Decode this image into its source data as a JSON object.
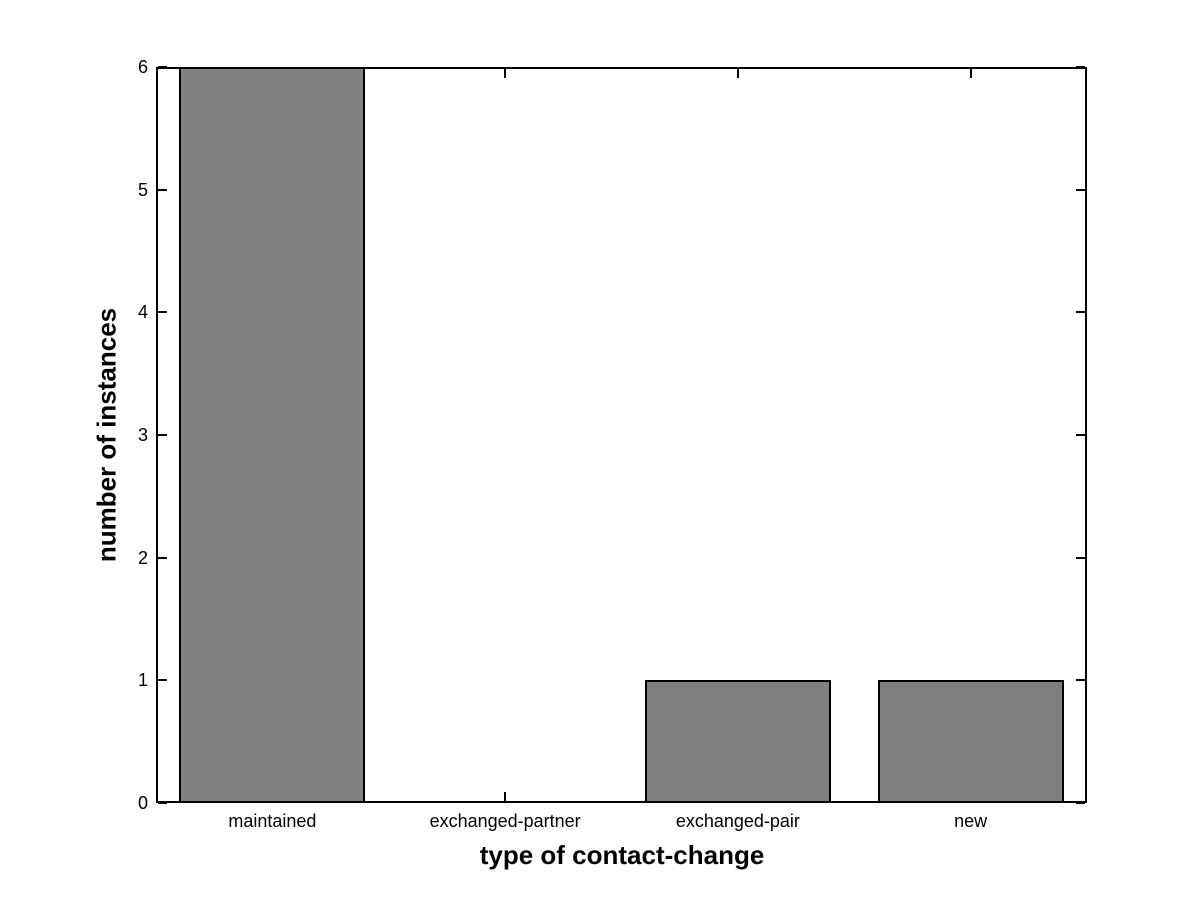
{
  "chart_data": {
    "type": "bar",
    "categories": [
      "maintained",
      "exchanged-partner",
      "exchanged-pair",
      "new"
    ],
    "values": [
      6,
      0,
      1,
      1
    ],
    "title": "",
    "xlabel": "type of contact-change",
    "ylabel": "number of instances",
    "ylim": [
      0,
      6
    ],
    "yticks": [
      0,
      1,
      2,
      3,
      4,
      5,
      6
    ],
    "ytick_labels": [
      "0",
      "1",
      "2",
      "3",
      "4",
      "5",
      "6"
    ],
    "bar_width_fraction": 0.8,
    "bar_color": "#808080",
    "bar_edge_color": "#000000",
    "axis_color": "#000000",
    "background_color": "#ffffff",
    "grid": false,
    "legend_position": "none",
    "tick_direction": "in"
  }
}
